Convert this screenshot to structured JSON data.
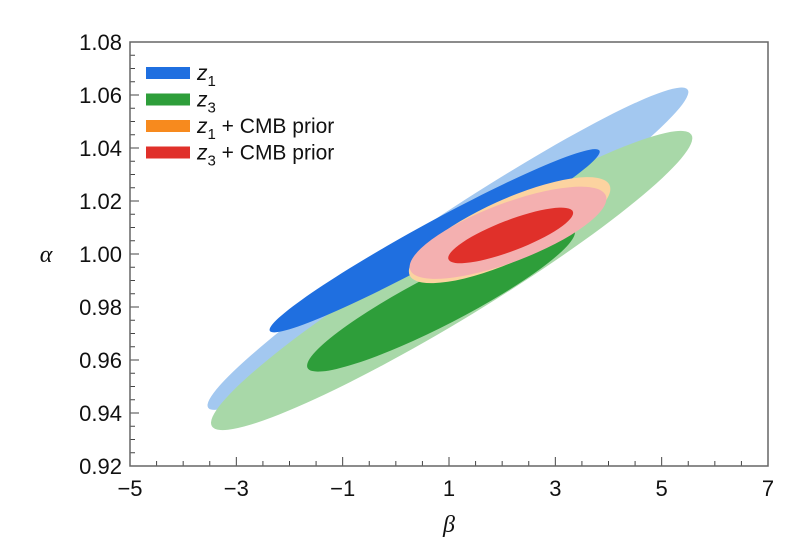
{
  "chart_data": {
    "type": "contour",
    "title": "",
    "xlabel": "β",
    "ylabel": "α",
    "xlim": [
      -5,
      7
    ],
    "ylim": [
      0.92,
      1.08
    ],
    "xticks": [
      "−5",
      "−3",
      "−1",
      "1",
      "3",
      "5",
      "7"
    ],
    "xtick_values": [
      -5,
      -3,
      -1,
      1,
      3,
      5,
      7
    ],
    "yticks": [
      "0.92",
      "0.94",
      "0.96",
      "0.98",
      "1.00",
      "1.02",
      "1.04",
      "1.06",
      "1.08"
    ],
    "ytick_values": [
      0.92,
      0.94,
      0.96,
      0.98,
      1.0,
      1.02,
      1.04,
      1.06,
      1.08
    ],
    "legend_position": "top-left",
    "legend": [
      {
        "var": "z",
        "sub": "1",
        "suffix": "",
        "color": "#1f6fe0"
      },
      {
        "var": "z",
        "sub": "3",
        "suffix": "",
        "color": "#2e9e3a"
      },
      {
        "var": "z",
        "sub": "1",
        "suffix": " + CMB prior",
        "color": "#f78a1e"
      },
      {
        "var": "z",
        "sub": "3",
        "suffix": " + CMB prior",
        "color": "#e0302a"
      }
    ],
    "series": [
      {
        "name": "z1 outer (95%)",
        "center": [
          0.98,
          1.002
        ],
        "major_end": [
          5.49,
          1.062
        ],
        "minor_ratio": 0.11,
        "color": "#a3c8f0"
      },
      {
        "name": "z3 outer (95%)",
        "center": [
          1.05,
          0.99
        ],
        "major_end": [
          5.56,
          1.045
        ],
        "minor_ratio": 0.14,
        "color": "#a8d8a8"
      },
      {
        "name": "z1 inner (68%)",
        "center": [
          0.73,
          1.005
        ],
        "major_end": [
          3.83,
          1.039
        ],
        "minor_ratio": 0.1,
        "color": "#1f6fe0"
      },
      {
        "name": "z3 inner (68%)",
        "center": [
          0.85,
          0.983
        ],
        "major_end": [
          3.36,
          1.009
        ],
        "minor_ratio": 0.17,
        "color": "#2e9e3a"
      },
      {
        "name": "z1 + CMB prior outer",
        "center": [
          2.14,
          1.009
        ],
        "major_end": [
          4.02,
          1.026
        ],
        "minor_ratio": 0.28,
        "color": "#fcd3a0"
      },
      {
        "name": "z3 + CMB prior outer",
        "center": [
          2.11,
          1.008
        ],
        "major_end": [
          3.95,
          1.022
        ],
        "minor_ratio": 0.28,
        "color": "#f4b0b0"
      },
      {
        "name": "z3 + CMB prior inner",
        "center": [
          2.16,
          1.007
        ],
        "major_end": [
          3.33,
          1.016
        ],
        "minor_ratio": 0.23,
        "color": "#e0302a"
      }
    ]
  }
}
